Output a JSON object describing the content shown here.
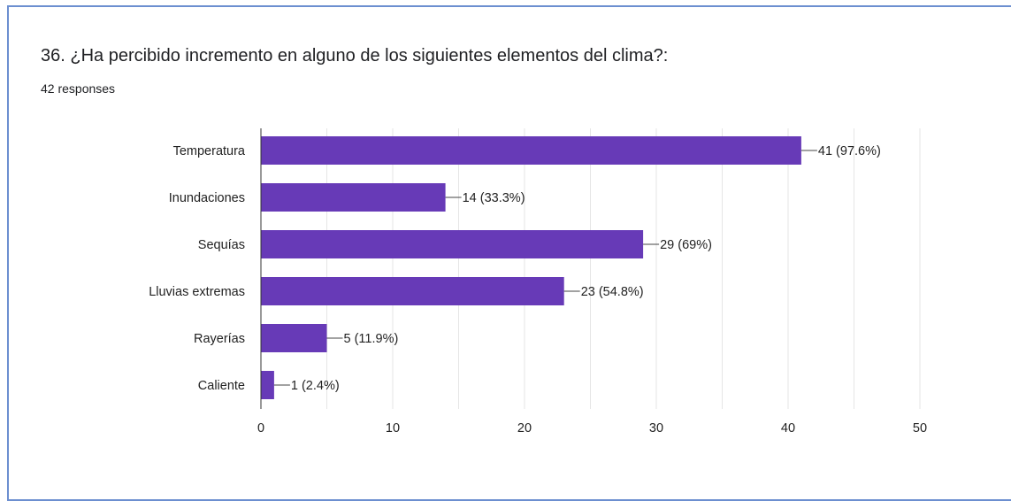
{
  "question": {
    "title": "36. ¿Ha percibido incremento en alguno de los siguientes elementos del clima?:",
    "responses": "42 responses"
  },
  "colors": {
    "bar": "#673ab7",
    "border": "#6c8fd0"
  },
  "chart_data": {
    "type": "bar",
    "orientation": "horizontal",
    "categories": [
      "Temperatura",
      "Inundaciones",
      "Sequías",
      "Lluvias extremas",
      "Rayerías",
      "Caliente"
    ],
    "values": [
      41,
      14,
      29,
      23,
      5,
      1
    ],
    "data_labels": [
      "41 (97.6%)",
      "14 (33.3%)",
      "29 (69%)",
      "23 (54.8%)",
      "5 (11.9%)",
      "1 (2.4%)"
    ],
    "xlim": [
      0,
      50
    ],
    "xticks": [
      0,
      10,
      20,
      30,
      40,
      50
    ],
    "grid": true
  }
}
